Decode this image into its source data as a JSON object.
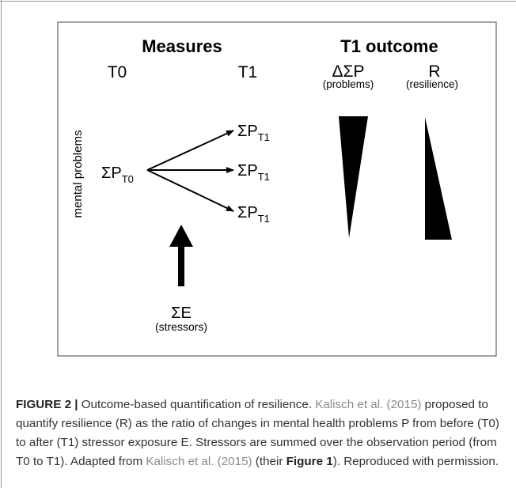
{
  "figure": {
    "headings": {
      "measures": "Measures",
      "outcome": "T1 outcome"
    },
    "t0": "T0",
    "t1": "T1",
    "delta_label": "ΔΣP",
    "delta_sub": "(problems)",
    "r_label": "R",
    "r_sub": "(resilience)",
    "y_label": "mental problems",
    "p_symbol": "ΣP",
    "t0_sub": "T0",
    "t1_sub": "T1",
    "e_label": "ΣE",
    "e_sub": "(stressors)"
  },
  "caption": [
    {
      "text": "FIGURE 2 |",
      "style": "bold"
    },
    {
      "text": " Outcome-based quantification of resilience. ",
      "style": "plain"
    },
    {
      "text": "Kalisch et al. (2015)",
      "style": "link"
    },
    {
      "text": " proposed to quantify resilience (R) as the ratio of changes in mental health problems P from before (T0) to after (T1) stressor exposure E. Stressors are summed over the observation period (from T0 to T1). Adapted from ",
      "style": "plain"
    },
    {
      "text": "Kalisch et al. (2015)",
      "style": "link"
    },
    {
      "text": " (their ",
      "style": "plain"
    },
    {
      "text": "Figure 1",
      "style": "bold"
    },
    {
      "text": "). Reproduced with permission.",
      "style": "plain"
    }
  ]
}
